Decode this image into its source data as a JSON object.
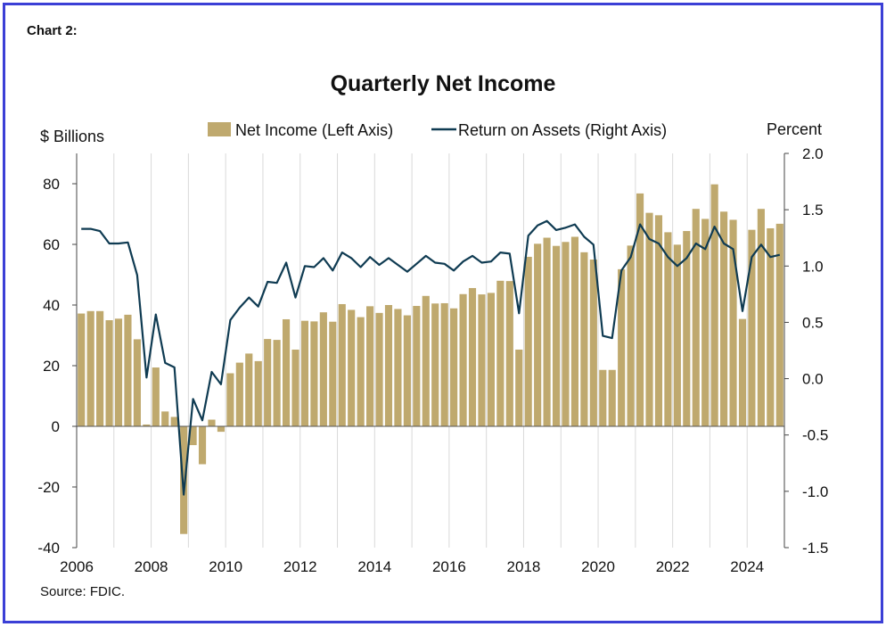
{
  "header": {
    "chart_number": "Chart 2:",
    "title": "Quarterly Net Income"
  },
  "footer": {
    "source": "Source: FDIC."
  },
  "colors": {
    "bars": "#bfa96e",
    "line": "#0f3b52",
    "border": "#3b3fd6",
    "grid": "#d9d9d9"
  },
  "chart_data": {
    "type": "bar",
    "title": "Quarterly Net Income",
    "ylabel": "$ Billions",
    "y2label": "Percent",
    "ylim": [
      -40,
      90
    ],
    "y2lim": [
      -1.5,
      2.0
    ],
    "yticks": [
      -40,
      -20,
      0,
      20,
      40,
      60,
      80
    ],
    "y2ticks": [
      "-1.5",
      "-1.0",
      "-0.5",
      "0.0",
      "0.5",
      "1.0",
      "1.5",
      "2.0"
    ],
    "x_tick_labels": [
      "2006",
      "2008",
      "2010",
      "2012",
      "2014",
      "2016",
      "2018",
      "2020",
      "2022",
      "2024"
    ],
    "x_start_year": 2006,
    "quarters_per_year": 4,
    "grid": "vertical year lines",
    "legend_position": "top-center",
    "series": [
      {
        "name": "Net Income (Left Axis)",
        "type": "bar",
        "axis": "left",
        "values": [
          37.2,
          38.0,
          38.0,
          35.0,
          35.5,
          36.8,
          28.7,
          0.6,
          19.4,
          4.9,
          3.1,
          -35.5,
          -6.2,
          -12.5,
          2.2,
          -1.8,
          17.5,
          21.0,
          24.0,
          21.5,
          28.8,
          28.5,
          35.3,
          25.3,
          34.8,
          34.6,
          37.6,
          34.5,
          40.3,
          38.4,
          36.0,
          39.6,
          37.4,
          40.0,
          38.7,
          36.6,
          39.7,
          43.0,
          40.5,
          40.6,
          38.9,
          43.6,
          45.6,
          43.5,
          44.0,
          48.0,
          47.9,
          25.3,
          55.9,
          60.2,
          62.2,
          59.5,
          60.8,
          62.5,
          57.4,
          55.0,
          18.6,
          18.6,
          51.8,
          59.6,
          76.8,
          70.4,
          69.6,
          64.0,
          59.9,
          64.4,
          71.7,
          68.4,
          79.8,
          70.8,
          68.1,
          35.4,
          64.8,
          71.7,
          65.3,
          66.8
        ]
      },
      {
        "name": "Return on Assets (Right Axis)",
        "type": "line",
        "axis": "right",
        "values": [
          1.33,
          1.33,
          1.31,
          1.2,
          1.2,
          1.21,
          0.92,
          0.01,
          0.57,
          0.14,
          0.1,
          -1.03,
          -0.18,
          -0.37,
          0.06,
          -0.05,
          0.52,
          0.63,
          0.72,
          0.64,
          0.86,
          0.85,
          1.03,
          0.72,
          1.0,
          0.99,
          1.07,
          0.96,
          1.12,
          1.07,
          0.99,
          1.08,
          1.01,
          1.07,
          1.01,
          0.95,
          1.02,
          1.09,
          1.03,
          1.02,
          0.96,
          1.04,
          1.09,
          1.03,
          1.04,
          1.12,
          1.11,
          0.58,
          1.27,
          1.36,
          1.4,
          1.32,
          1.34,
          1.37,
          1.26,
          1.19,
          0.38,
          0.36,
          0.96,
          1.08,
          1.37,
          1.24,
          1.2,
          1.08,
          1.0,
          1.07,
          1.2,
          1.15,
          1.35,
          1.2,
          1.15,
          0.6,
          1.08,
          1.19,
          1.08,
          1.1
        ]
      }
    ]
  }
}
